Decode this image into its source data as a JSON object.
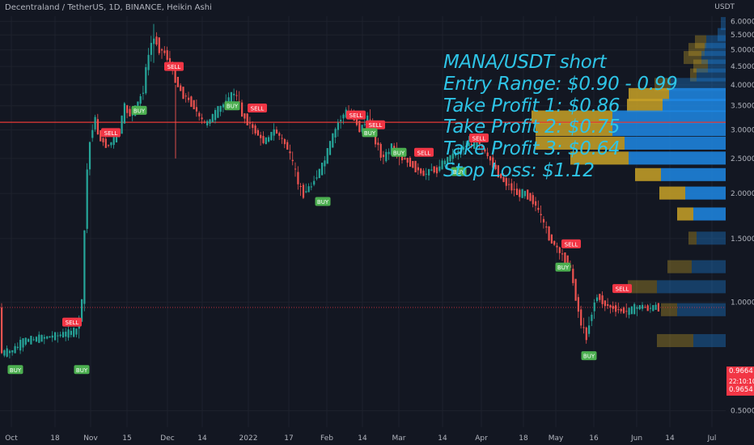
{
  "header": {
    "symbol_line": "Decentraland / TetherUS, 1D, BINANCE, Heikin Ashi",
    "currency": "USDT"
  },
  "annotation": {
    "lines": [
      "MANA/USDT short",
      "Entry Range: $0.90 - 0.99",
      "Take Profit 1: $0.86",
      "Take Profit 2: $0.75",
      "Take Profit 3: $0.64",
      "Stop Loss: $1.12"
    ]
  },
  "price_tags": {
    "current": "0.9664",
    "countdown": "22:10:10",
    "low": "0.9654"
  },
  "colors": {
    "up": "#26a69a",
    "down": "#ef5350",
    "hline": "#e53935",
    "vp_blue": "#1e88e5",
    "vp_gold": "#c9a227",
    "text": "#b2b5be",
    "annot": "#2ec4e6"
  },
  "chart_data": {
    "type": "candlestick",
    "scale": "log",
    "ylim": [
      0.45,
      6.2
    ],
    "y_ticks": [
      "6.0000",
      "5.5000",
      "5.0000",
      "4.5000",
      "4.0000",
      "3.5000",
      "3.0000",
      "2.5000",
      "2.0000",
      "1.5000",
      "1.0000",
      "0.5000"
    ],
    "x_ticks": [
      "Oct",
      "18",
      "Nov",
      "15",
      "Dec",
      "14",
      "2022",
      "17",
      "Feb",
      "14",
      "Mar",
      "14",
      "Apr",
      "18",
      "May",
      "16",
      "Jun",
      "14",
      "Jul"
    ],
    "horizontal_line": 3.15,
    "current_price": 0.9664,
    "path_points": [
      [
        0,
        0.72
      ],
      [
        15,
        0.73
      ],
      [
        30,
        0.78
      ],
      [
        45,
        0.79
      ],
      [
        60,
        0.8
      ],
      [
        75,
        0.81
      ],
      [
        95,
        0.83
      ],
      [
        102,
        1.0
      ],
      [
        105,
        1.6
      ],
      [
        108,
        2.3
      ],
      [
        113,
        3.0
      ],
      [
        118,
        3.2
      ],
      [
        122,
        2.9
      ],
      [
        127,
        2.8
      ],
      [
        133,
        2.7
      ],
      [
        140,
        2.8
      ],
      [
        148,
        3.0
      ],
      [
        155,
        3.5
      ],
      [
        160,
        3.3
      ],
      [
        167,
        3.4
      ],
      [
        172,
        3.6
      ],
      [
        178,
        3.9
      ],
      [
        182,
        4.6
      ],
      [
        187,
        5.2
      ],
      [
        192,
        5.4
      ],
      [
        198,
        5.0
      ],
      [
        205,
        4.9
      ],
      [
        210,
        4.6
      ],
      [
        215,
        4.3
      ],
      [
        220,
        4.0
      ],
      [
        225,
        3.8
      ],
      [
        230,
        3.7
      ],
      [
        235,
        3.6
      ],
      [
        240,
        3.5
      ],
      [
        245,
        3.3
      ],
      [
        250,
        3.2
      ],
      [
        255,
        3.1
      ],
      [
        260,
        3.2
      ],
      [
        265,
        3.3
      ],
      [
        270,
        3.4
      ],
      [
        275,
        3.5
      ],
      [
        280,
        3.6
      ],
      [
        285,
        3.7
      ],
      [
        290,
        3.8
      ],
      [
        295,
        3.6
      ],
      [
        300,
        3.3
      ],
      [
        305,
        3.2
      ],
      [
        310,
        3.1
      ],
      [
        315,
        3.0
      ],
      [
        320,
        2.9
      ],
      [
        325,
        2.8
      ],
      [
        330,
        2.8
      ],
      [
        335,
        2.9
      ],
      [
        340,
        3.0
      ],
      [
        345,
        2.9
      ],
      [
        350,
        2.8
      ],
      [
        355,
        2.7
      ],
      [
        360,
        2.5
      ],
      [
        365,
        2.3
      ],
      [
        370,
        2.1
      ],
      [
        375,
        2.0
      ],
      [
        380,
        2.05
      ],
      [
        385,
        2.1
      ],
      [
        390,
        2.2
      ],
      [
        395,
        2.3
      ],
      [
        400,
        2.4
      ],
      [
        405,
        2.6
      ],
      [
        410,
        2.8
      ],
      [
        415,
        3.0
      ],
      [
        420,
        3.2
      ],
      [
        425,
        3.3
      ],
      [
        430,
        3.4
      ],
      [
        435,
        3.3
      ],
      [
        440,
        3.2
      ],
      [
        445,
        3.0
      ],
      [
        450,
        3.1
      ],
      [
        455,
        3.3
      ],
      [
        460,
        3.0
      ],
      [
        465,
        2.8
      ],
      [
        470,
        2.6
      ],
      [
        475,
        2.5
      ],
      [
        480,
        2.6
      ],
      [
        485,
        2.7
      ],
      [
        490,
        2.6
      ],
      [
        495,
        2.5
      ],
      [
        500,
        2.5
      ],
      [
        505,
        2.45
      ],
      [
        510,
        2.4
      ],
      [
        515,
        2.35
      ],
      [
        520,
        2.3
      ],
      [
        525,
        2.25
      ],
      [
        530,
        2.3
      ],
      [
        535,
        2.35
      ],
      [
        540,
        2.3
      ],
      [
        545,
        2.4
      ],
      [
        550,
        2.45
      ],
      [
        555,
        2.5
      ],
      [
        560,
        2.55
      ],
      [
        565,
        2.6
      ],
      [
        570,
        2.65
      ],
      [
        575,
        2.7
      ],
      [
        580,
        2.75
      ],
      [
        585,
        2.7
      ],
      [
        590,
        2.8
      ],
      [
        595,
        2.7
      ],
      [
        600,
        2.6
      ],
      [
        605,
        2.5
      ],
      [
        610,
        2.4
      ],
      [
        615,
        2.3
      ],
      [
        620,
        2.2
      ],
      [
        625,
        2.15
      ],
      [
        630,
        2.1
      ],
      [
        635,
        2.05
      ],
      [
        640,
        2.0
      ],
      [
        645,
        2.0
      ],
      [
        650,
        2.0
      ],
      [
        655,
        1.95
      ],
      [
        660,
        1.9
      ],
      [
        665,
        1.8
      ],
      [
        670,
        1.7
      ],
      [
        675,
        1.6
      ],
      [
        680,
        1.5
      ],
      [
        685,
        1.45
      ],
      [
        690,
        1.4
      ],
      [
        695,
        1.35
      ],
      [
        700,
        1.3
      ],
      [
        705,
        1.25
      ],
      [
        710,
        1.1
      ],
      [
        715,
        0.95
      ],
      [
        720,
        0.85
      ],
      [
        725,
        0.8
      ],
      [
        730,
        0.9
      ],
      [
        735,
        1.0
      ],
      [
        740,
        1.05
      ],
      [
        745,
        1.0
      ],
      [
        750,
        0.98
      ],
      [
        755,
        0.97
      ],
      [
        760,
        0.96
      ],
      [
        765,
        0.95
      ],
      [
        770,
        0.95
      ],
      [
        775,
        0.94
      ],
      [
        780,
        0.95
      ],
      [
        785,
        0.96
      ],
      [
        790,
        0.97
      ],
      [
        795,
        0.97
      ],
      [
        800,
        0.96
      ],
      [
        805,
        0.96
      ],
      [
        810,
        0.97
      ],
      [
        815,
        0.966
      ]
    ],
    "signals": [
      {
        "label": "BUY",
        "x": 19,
        "price": 0.65,
        "kind": "buy"
      },
      {
        "label": "SELL",
        "x": 89,
        "price": 0.88,
        "kind": "sell"
      },
      {
        "label": "BUY",
        "x": 101,
        "price": 0.65,
        "kind": "buy"
      },
      {
        "label": "SELL",
        "x": 137,
        "price": 2.95,
        "kind": "sell"
      },
      {
        "label": "BUY",
        "x": 172,
        "price": 3.4,
        "kind": "buy"
      },
      {
        "label": "SELL",
        "x": 215,
        "price": 4.5,
        "kind": "sell"
      },
      {
        "label": "BUY",
        "x": 287,
        "price": 3.5,
        "kind": "buy"
      },
      {
        "label": "SELL",
        "x": 318,
        "price": 3.45,
        "kind": "sell"
      },
      {
        "label": "BUY",
        "x": 399,
        "price": 1.9,
        "kind": "buy"
      },
      {
        "label": "SELL",
        "x": 440,
        "price": 3.3,
        "kind": "sell"
      },
      {
        "label": "SELL",
        "x": 464,
        "price": 3.1,
        "kind": "sell"
      },
      {
        "label": "BUY",
        "x": 457,
        "price": 2.95,
        "kind": "buy"
      },
      {
        "label": "BUY",
        "x": 493,
        "price": 2.6,
        "kind": "buy"
      },
      {
        "label": "SELL",
        "x": 524,
        "price": 2.6,
        "kind": "sell"
      },
      {
        "label": "BUY",
        "x": 567,
        "price": 2.3,
        "kind": "buy"
      },
      {
        "label": "SELL",
        "x": 592,
        "price": 2.85,
        "kind": "sell"
      },
      {
        "label": "SELL",
        "x": 706,
        "price": 1.45,
        "kind": "sell"
      },
      {
        "label": "BUY",
        "x": 696,
        "price": 1.25,
        "kind": "buy"
      },
      {
        "label": "BUY",
        "x": 728,
        "price": 0.71,
        "kind": "buy"
      },
      {
        "label": "SELL",
        "x": 769,
        "price": 1.09,
        "kind": "sell"
      }
    ],
    "volume_profile": [
      {
        "price": 5.9,
        "blue": 6,
        "gold": 0
      },
      {
        "price": 5.5,
        "blue": 10,
        "gold": 0
      },
      {
        "price": 5.25,
        "blue": 24,
        "gold": 14
      },
      {
        "price": 5.0,
        "blue": 26,
        "gold": 20
      },
      {
        "price": 4.75,
        "blue": 30,
        "gold": 22
      },
      {
        "price": 4.5,
        "blue": 22,
        "gold": 18
      },
      {
        "price": 4.25,
        "blue": 36,
        "gold": 8
      },
      {
        "price": 4.0,
        "blue": 68,
        "gold": 20
      },
      {
        "price": 3.75,
        "blue": 70,
        "gold": 50
      },
      {
        "price": 3.5,
        "blue": 78,
        "gold": 44
      },
      {
        "price": 3.25,
        "blue": 140,
        "gold": 100
      },
      {
        "price": 3.0,
        "blue": 140,
        "gold": 95
      },
      {
        "price": 2.75,
        "blue": 125,
        "gold": 110
      },
      {
        "price": 2.5,
        "blue": 120,
        "gold": 72
      },
      {
        "price": 2.25,
        "blue": 80,
        "gold": 32
      },
      {
        "price": 2.0,
        "blue": 50,
        "gold": 32
      },
      {
        "price": 1.75,
        "blue": 40,
        "gold": 20
      },
      {
        "price": 1.5,
        "blue": 36,
        "gold": 10
      },
      {
        "price": 1.25,
        "blue": 42,
        "gold": 30
      },
      {
        "price": 1.1,
        "blue": 85,
        "gold": 36
      },
      {
        "price": 0.95,
        "blue": 60,
        "gold": 20
      },
      {
        "price": 0.78,
        "blue": 40,
        "gold": 45
      }
    ]
  }
}
